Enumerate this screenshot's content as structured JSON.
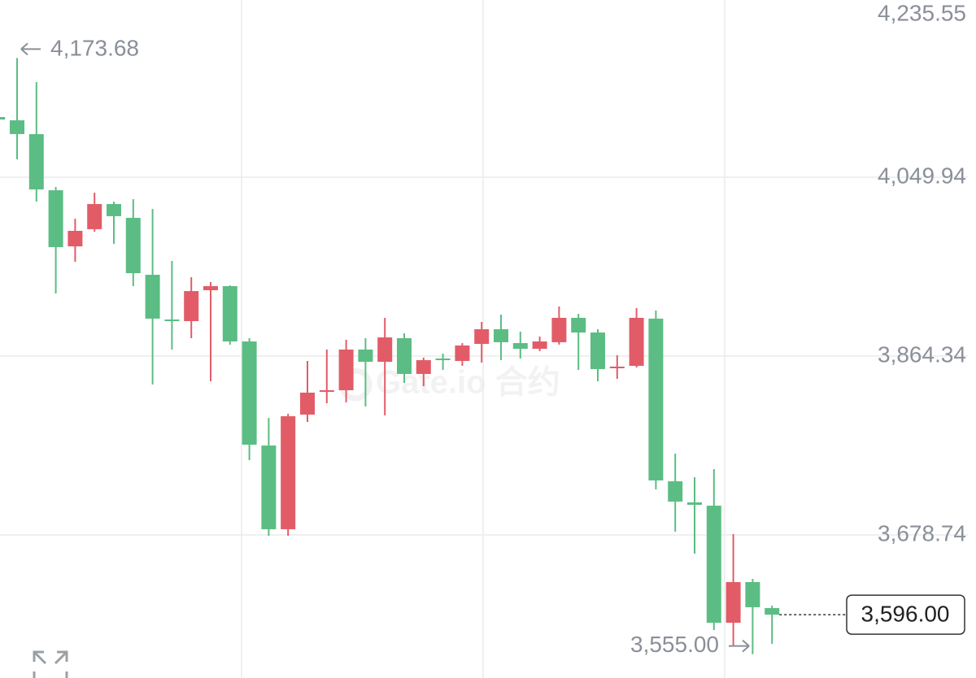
{
  "chart_data": {
    "type": "candlestick",
    "watermark": "Gate.io 合约",
    "up_color": "#e25c68",
    "down_color": "#5bbd83",
    "grid": true,
    "ylim": [
      3530.26,
      4235.55
    ],
    "yticks": [
      {
        "value": 4235.55,
        "label": "4,235.55"
      },
      {
        "value": 4049.94,
        "label": "4,049.94"
      },
      {
        "value": 3864.34,
        "label": "3,864.34"
      },
      {
        "value": 3678.74,
        "label": "3,678.74"
      }
    ],
    "high_marker": {
      "value": 4173.68,
      "label": "4,173.68"
    },
    "low_marker": {
      "value": 3555.0,
      "label": "3,555.00"
    },
    "last_price": {
      "value": 3596.0,
      "label": "3,596.00"
    },
    "open": [
      4112.4,
      4109.0,
      4094.7,
      4036.4,
      3978.2,
      3996.0,
      4022.1,
      4007.8,
      3948.7,
      3902.3,
      3900.6,
      3932.7,
      3936.9,
      3879.5,
      3771.5,
      3684.6,
      3803.6,
      3827.2,
      3828.9,
      3871.1,
      3858.4,
      3882.9,
      3845.8,
      3861.8,
      3859.3,
      3877.0,
      3892.2,
      3877.8,
      3871.9,
      3878.7,
      3904.0,
      3888.8,
      3851.7,
      3854.2,
      3903.2,
      3734.4,
      3712.5,
      3709.1,
      3587.6,
      3629.8,
      3602.8
    ],
    "high": [
      4112.4,
      4173.68,
      4148.7,
      4039.8,
      4006.9,
      4033.9,
      4024.6,
      4027.2,
      4017.0,
      3963.1,
      3946.2,
      3941.1,
      3937.7,
      3882.9,
      3800.2,
      3804.4,
      3859.3,
      3871.1,
      3881.2,
      3882.9,
      3904.0,
      3888.0,
      3862.7,
      3866.9,
      3877.8,
      3899.8,
      3907.4,
      3889.7,
      3884.6,
      3915.8,
      3908.2,
      3892.2,
      3865.2,
      3914.1,
      3911.6,
      3763.1,
      3738.6,
      3747.1,
      3679.6,
      3633.2,
      3605.3
    ],
    "low": [
      4109.8,
      4068.5,
      4024.6,
      3929.3,
      3962.2,
      3993.4,
      3980.8,
      3936.9,
      3834.8,
      3871.1,
      3882.9,
      3838.2,
      3876.2,
      3756.4,
      3677.9,
      3677.9,
      3796.0,
      3815.4,
      3816.3,
      3812.0,
      3802.8,
      3836.5,
      3833.1,
      3850.0,
      3854.2,
      3857.6,
      3860.1,
      3861.8,
      3869.4,
      3876.2,
      3850.0,
      3838.2,
      3840.7,
      3852.5,
      3726.0,
      3682.1,
      3659.3,
      3580.0,
      3563.2,
      3555.0,
      3565.7
    ],
    "close": [
      4109.8,
      4094.7,
      4037.3,
      3977.4,
      3994.3,
      4022.1,
      4009.5,
      3950.4,
      3903.2,
      3900.6,
      3931.8,
      3936.9,
      3879.5,
      3772.4,
      3684.6,
      3801.9,
      3826.4,
      3828.9,
      3871.1,
      3858.4,
      3883.7,
      3845.8,
      3860.1,
      3860.1,
      3875.3,
      3892.2,
      3878.7,
      3871.9,
      3879.5,
      3904.0,
      3888.8,
      3850.8,
      3853.4,
      3904.0,
      3735.3,
      3713.3,
      3710.0,
      3587.6,
      3629.8,
      3603.7,
      3596.0
    ]
  }
}
